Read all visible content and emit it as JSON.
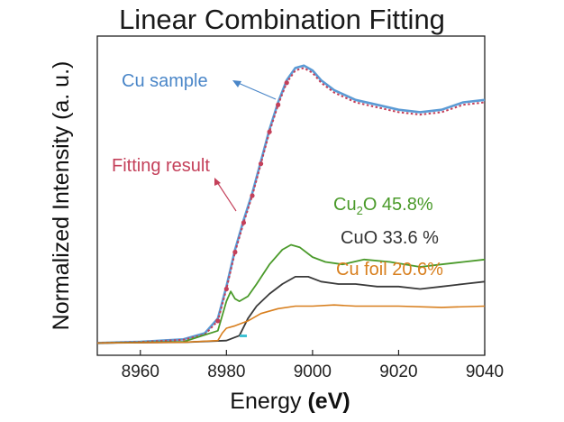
{
  "chart_data": {
    "type": "line",
    "title": "Linear Combination Fitting",
    "xlabel": "Energy ",
    "xlabel_unit": "(eV)",
    "ylabel": "Normalized Intensity (a. u.)",
    "xlim": [
      8950,
      9040
    ],
    "ylim": [
      -0.05,
      1.25
    ],
    "xticks": [
      "8960",
      "8980",
      "9000",
      "9020",
      "9040"
    ],
    "y_tick_labels": false,
    "grid": false,
    "colors": {
      "cu_sample": "#5b9bd5",
      "fitting_result": "#c4405a",
      "cu2o": "#4a9a2a",
      "cuo": "#3a3a3a",
      "cu_foil": "#d87f1e"
    },
    "annotations": {
      "cu_sample": "Cu sample",
      "fitting_result": "Fitting result",
      "cu2o_prefix": "Cu",
      "cu2o_sub": "2",
      "cu2o_suffix": "O 45.8%",
      "cuo": "CuO 33.6 %",
      "cu_foil": "Cu foil 20.6%"
    },
    "series": [
      {
        "name": "Cu sample",
        "x": [
          8950,
          8960,
          8970,
          8975,
          8978,
          8980,
          8982,
          8984,
          8986,
          8988,
          8990,
          8992,
          8994,
          8996,
          8998,
          9000,
          9002,
          9005,
          9010,
          9015,
          9020,
          9025,
          9030,
          9035,
          9040
        ],
        "y": [
          0.0,
          0.005,
          0.015,
          0.04,
          0.1,
          0.23,
          0.38,
          0.5,
          0.61,
          0.74,
          0.87,
          0.98,
          1.07,
          1.12,
          1.13,
          1.11,
          1.07,
          1.03,
          0.99,
          0.97,
          0.95,
          0.94,
          0.95,
          0.98,
          0.99
        ]
      },
      {
        "name": "Fitting result",
        "x": [
          8950,
          8960,
          8970,
          8975,
          8978,
          8980,
          8982,
          8984,
          8986,
          8988,
          8990,
          8992,
          8994,
          8996,
          8998,
          9000,
          9002,
          9005,
          9010,
          9015,
          9020,
          9025,
          9030,
          9035,
          9040
        ],
        "y": [
          0.0,
          0.004,
          0.013,
          0.035,
          0.09,
          0.22,
          0.37,
          0.49,
          0.6,
          0.73,
          0.86,
          0.97,
          1.06,
          1.11,
          1.12,
          1.1,
          1.06,
          1.02,
          0.98,
          0.96,
          0.94,
          0.93,
          0.94,
          0.97,
          0.98
        ]
      },
      {
        "name": "Cu2O 45.8%",
        "x": [
          8950,
          8970,
          8978,
          8980,
          8981,
          8982,
          8983,
          8985,
          8987,
          8990,
          8993,
          8995,
          8997,
          9000,
          9003,
          9007,
          9012,
          9018,
          9025,
          9030,
          9035,
          9040
        ],
        "y": [
          0.0,
          0.005,
          0.05,
          0.17,
          0.21,
          0.18,
          0.17,
          0.19,
          0.24,
          0.32,
          0.38,
          0.4,
          0.39,
          0.35,
          0.33,
          0.32,
          0.34,
          0.33,
          0.31,
          0.32,
          0.33,
          0.34
        ]
      },
      {
        "name": "CuO 33.6 %",
        "x": [
          8950,
          8970,
          8980,
          8983,
          8985,
          8987,
          8990,
          8993,
          8996,
          8999,
          9002,
          9006,
          9010,
          9015,
          9020,
          9025,
          9030,
          9035,
          9040
        ],
        "y": [
          0.0,
          0.003,
          0.01,
          0.03,
          0.1,
          0.15,
          0.2,
          0.24,
          0.27,
          0.27,
          0.25,
          0.24,
          0.24,
          0.23,
          0.23,
          0.22,
          0.23,
          0.24,
          0.25
        ]
      },
      {
        "name": "Cu foil 20.6%",
        "x": [
          8950,
          8970,
          8978,
          8979,
          8980,
          8982,
          8985,
          8988,
          8992,
          8996,
          9000,
          9005,
          9010,
          9020,
          9030,
          9040
        ],
        "y": [
          0.0,
          0.003,
          0.01,
          0.04,
          0.06,
          0.07,
          0.09,
          0.12,
          0.14,
          0.15,
          0.15,
          0.155,
          0.15,
          0.15,
          0.145,
          0.15
        ]
      }
    ]
  }
}
